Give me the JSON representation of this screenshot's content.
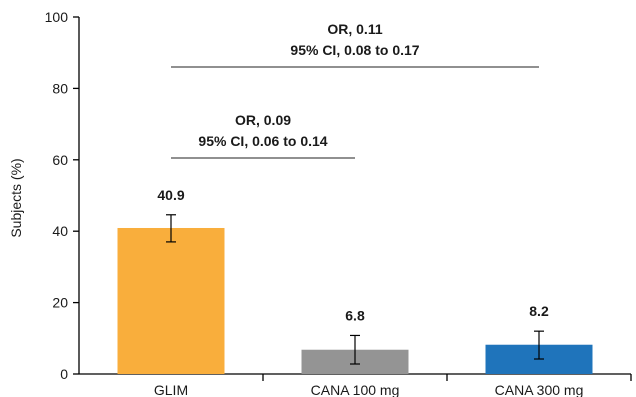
{
  "chart_data": {
    "type": "bar",
    "categories": [
      "GLIM",
      "CANA 100 mg",
      "CANA 300 mg"
    ],
    "values": [
      40.9,
      6.8,
      8.2
    ],
    "value_labels": [
      "40.9",
      "6.8",
      "8.2"
    ],
    "error_bars": [
      {
        "low": 37.0,
        "high": 44.6
      },
      {
        "low": 2.8,
        "high": 10.8
      },
      {
        "low": 4.2,
        "high": 12.0
      }
    ],
    "colors": [
      "#F9AE3C",
      "#949494",
      "#1F74BB"
    ],
    "ylabel": "Subjects (%)",
    "ylim": [
      0,
      100
    ],
    "yticks": [
      0,
      20,
      40,
      60,
      80,
      100
    ],
    "annotations": [
      {
        "from": "GLIM",
        "to": "CANA 100 mg",
        "line1": "OR, 0.09",
        "line2": "95% CI, 0.06 to 0.14",
        "y": 60.5
      },
      {
        "from": "GLIM",
        "to": "CANA 300 mg",
        "line1": "OR, 0.11",
        "line2": "95% CI, 0.08 to 0.17",
        "y": 86
      }
    ]
  }
}
